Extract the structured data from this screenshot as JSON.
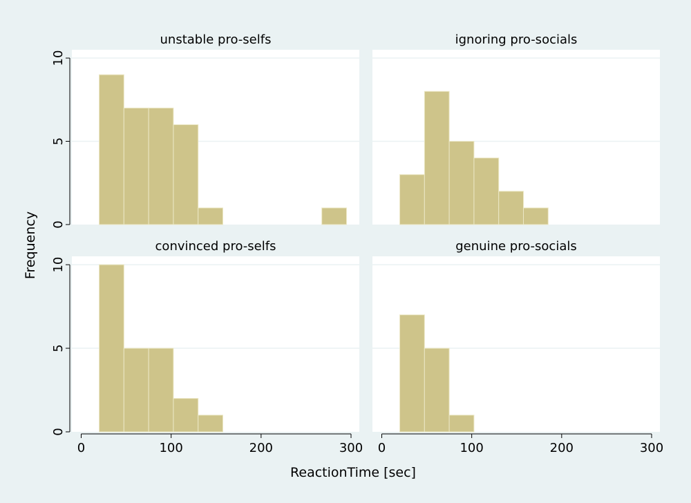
{
  "colors": {
    "background": "#eaf2f3",
    "plot_bg": "#ffffff",
    "panel_header": "#eaf2f3",
    "bar_fill": "#cec48a",
    "bar_stroke": "#ece8c6",
    "grid": "#eaf2f3",
    "axis": "#000000",
    "text": "#000000"
  },
  "chart_data": {
    "type": "bar",
    "subtype": "histogram",
    "title": "",
    "xlabel": "ReactionTime [sec]",
    "ylabel": "Frequency",
    "xlim": [
      -10,
      305
    ],
    "ylim": [
      0,
      10.5
    ],
    "x_ticks": [
      0,
      100,
      200,
      300
    ],
    "x_tick_labels": [
      "0",
      "100",
      "200",
      "300"
    ],
    "y_ticks": [
      0,
      5,
      10
    ],
    "y_tick_labels": [
      "0",
      "5",
      "10"
    ],
    "grid": true,
    "bin_edges": [
      20,
      47.5,
      75,
      102.5,
      130,
      157.5,
      185,
      212.5,
      240,
      267.5,
      295
    ],
    "panels": [
      {
        "label": "unstable pro-selfs",
        "values": [
          9,
          7,
          7,
          6,
          1,
          0,
          0,
          0,
          0,
          1
        ]
      },
      {
        "label": "ignoring pro-socials",
        "values": [
          3,
          8,
          5,
          4,
          2,
          1,
          0,
          0,
          0,
          0
        ]
      },
      {
        "label": "convinced pro-selfs",
        "values": [
          10,
          5,
          5,
          2,
          1,
          0,
          0,
          0,
          0,
          0
        ]
      },
      {
        "label": "genuine pro-socials",
        "values": [
          7,
          5,
          1,
          0,
          0,
          0,
          0,
          0,
          0,
          0
        ]
      }
    ]
  }
}
